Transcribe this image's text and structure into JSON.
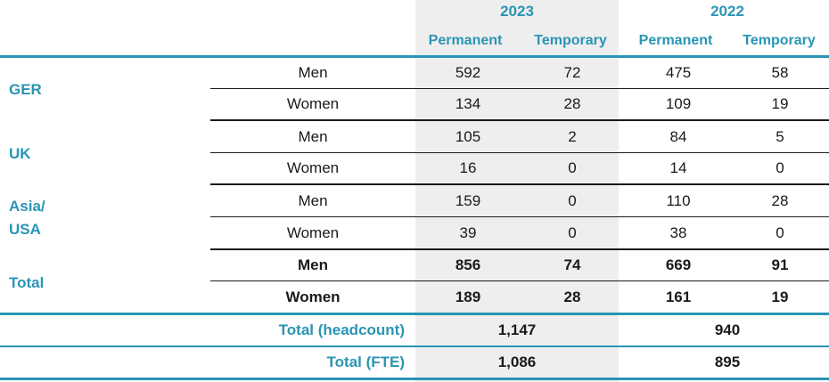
{
  "years": [
    "2023",
    "2022"
  ],
  "col_headers": [
    "Permanent",
    "Temporary",
    "Permanent",
    "Temporary"
  ],
  "regions": [
    {
      "label": "GER",
      "rows": [
        {
          "gender": "Men",
          "values": [
            "592",
            "72",
            "475",
            "58"
          ]
        },
        {
          "gender": "Women",
          "values": [
            "134",
            "28",
            "109",
            "19"
          ]
        }
      ]
    },
    {
      "label": "UK",
      "rows": [
        {
          "gender": "Men",
          "values": [
            "105",
            "2",
            "84",
            "5"
          ]
        },
        {
          "gender": "Women",
          "values": [
            "16",
            "0",
            "14",
            "0"
          ]
        }
      ]
    },
    {
      "label": "Asia/\nUSA",
      "rows": [
        {
          "gender": "Men",
          "values": [
            "159",
            "0",
            "110",
            "28"
          ]
        },
        {
          "gender": "Women",
          "values": [
            "39",
            "0",
            "38",
            "0"
          ]
        }
      ]
    },
    {
      "label": "Total",
      "rows": [
        {
          "gender": "Men",
          "values": [
            "856",
            "74",
            "669",
            "91"
          ]
        },
        {
          "gender": "Women",
          "values": [
            "189",
            "28",
            "161",
            "19"
          ]
        }
      ]
    }
  ],
  "summary": [
    {
      "label": "Total (headcount)",
      "values": [
        "1,147",
        "940"
      ]
    },
    {
      "label": "Total (FTE)",
      "values": [
        "1,086",
        "895"
      ]
    }
  ],
  "colors": {
    "accent": "#2a95b5",
    "shade": "#eeeeee",
    "rule": "#1a1a1a"
  }
}
